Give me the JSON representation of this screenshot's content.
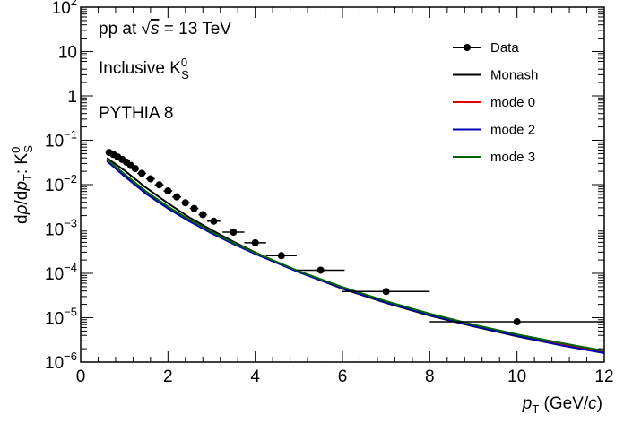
{
  "chart_data": {
    "type": "line",
    "title": "",
    "xlabel": "p_T (GeV/c)",
    "ylabel": "dρ/dp_T: K_S^0",
    "xlim": [
      0,
      12
    ],
    "ylim": [
      1e-06,
      100
    ],
    "log_y": true,
    "x_ticks": [
      "0",
      "2",
      "4",
      "6",
      "8",
      "10",
      "12"
    ],
    "y_ticks": [
      {
        "base": "10",
        "exp": "−6"
      },
      {
        "base": "10",
        "exp": "−5"
      },
      {
        "base": "10",
        "exp": "−4"
      },
      {
        "base": "10",
        "exp": "−3"
      },
      {
        "base": "10",
        "exp": "−2"
      },
      {
        "base": "10",
        "exp": "−1"
      },
      {
        "base": "1",
        "exp": ""
      },
      {
        "base": "10",
        "exp": ""
      },
      {
        "base": "10",
        "exp": "2"
      }
    ],
    "annotations": {
      "line1_prefix": "pp at ",
      "line1_sqrt": "√",
      "line1_s": "s",
      "line1_suffix": " = 13 TeV",
      "line2_prefix": "Inclusive K",
      "line2_sup": "0",
      "line2_sub": "S",
      "line3": "PYTHIA 8"
    },
    "legend_position": "top-right",
    "series": [
      {
        "name": "Data",
        "kind": "points",
        "color": "#000000",
        "points": [
          {
            "x": 0.65,
            "y": 0.053,
            "xerr": 0.05
          },
          {
            "x": 0.75,
            "y": 0.048,
            "xerr": 0.05
          },
          {
            "x": 0.85,
            "y": 0.042,
            "xerr": 0.05
          },
          {
            "x": 0.95,
            "y": 0.037,
            "xerr": 0.05
          },
          {
            "x": 1.05,
            "y": 0.032,
            "xerr": 0.05
          },
          {
            "x": 1.15,
            "y": 0.027,
            "xerr": 0.05
          },
          {
            "x": 1.25,
            "y": 0.023,
            "xerr": 0.05
          },
          {
            "x": 1.4,
            "y": 0.018,
            "xerr": 0.1
          },
          {
            "x": 1.6,
            "y": 0.0135,
            "xerr": 0.1
          },
          {
            "x": 1.8,
            "y": 0.0099,
            "xerr": 0.1
          },
          {
            "x": 2.0,
            "y": 0.0072,
            "xerr": 0.1
          },
          {
            "x": 2.2,
            "y": 0.0053,
            "xerr": 0.1
          },
          {
            "x": 2.4,
            "y": 0.0039,
            "xerr": 0.1
          },
          {
            "x": 2.6,
            "y": 0.0029,
            "xerr": 0.1
          },
          {
            "x": 2.8,
            "y": 0.0021,
            "xerr": 0.1
          },
          {
            "x": 3.05,
            "y": 0.0015,
            "xerr": 0.15
          },
          {
            "x": 3.5,
            "y": 0.00085,
            "xerr": 0.25
          },
          {
            "x": 4.0,
            "y": 0.00049,
            "xerr": 0.25
          },
          {
            "x": 4.6,
            "y": 0.00025,
            "xerr": 0.35
          },
          {
            "x": 5.5,
            "y": 0.000118,
            "xerr": 0.55
          },
          {
            "x": 7.0,
            "y": 3.9e-05,
            "xerr": 1.0
          },
          {
            "x": 10.0,
            "y": 8.1e-06,
            "xerr": 2.0
          }
        ]
      },
      {
        "name": "Monash",
        "kind": "line",
        "color": "#000000",
        "x": [
          0.6,
          1.0,
          1.5,
          2.0,
          2.5,
          3.0,
          3.5,
          4.0,
          5.0,
          6.0,
          7.0,
          8.0,
          9.0,
          10.0,
          11.0,
          12.0
        ],
        "y": [
          0.04,
          0.021,
          0.0085,
          0.0038,
          0.0018,
          0.00095,
          0.00052,
          0.000295,
          0.000107,
          4.5e-05,
          2.15e-05,
          1.12e-05,
          6.4e-06,
          3.8e-06,
          2.4e-06,
          1.6e-06
        ]
      },
      {
        "name": "mode 0",
        "kind": "line",
        "color": "#e60000",
        "x": [
          0.6,
          1.0,
          1.5,
          2.0,
          2.5,
          3.0,
          3.5,
          4.0,
          5.0,
          6.0,
          7.0,
          8.0,
          9.0,
          10.0,
          11.0,
          12.0
        ],
        "y": [
          0.036,
          0.017,
          0.0068,
          0.0031,
          0.00155,
          0.00083,
          0.00047,
          0.00028,
          0.000107,
          4.65e-05,
          2.25e-05,
          1.18e-05,
          6.7e-06,
          4e-06,
          2.5e-06,
          1.7e-06
        ]
      },
      {
        "name": "mode 2",
        "kind": "line",
        "color": "#0000b4",
        "x": [
          0.6,
          1.0,
          1.5,
          2.0,
          2.5,
          3.0,
          3.5,
          4.0,
          5.0,
          6.0,
          7.0,
          8.0,
          9.0,
          10.0,
          11.0,
          12.0
        ],
        "y": [
          0.034,
          0.0155,
          0.0062,
          0.0029,
          0.00147,
          0.0008,
          0.00046,
          0.000275,
          0.000106,
          4.6e-05,
          2.2e-05,
          1.15e-05,
          6.5e-06,
          3.9e-06,
          2.4e-06,
          1.6e-06
        ]
      },
      {
        "name": "mode 3",
        "kind": "line",
        "color": "#006400",
        "x": [
          0.6,
          1.0,
          1.5,
          2.0,
          2.5,
          3.0,
          3.5,
          4.0,
          5.0,
          6.0,
          7.0,
          8.0,
          9.0,
          10.0,
          11.0,
          12.0
        ],
        "y": [
          0.037,
          0.0175,
          0.007,
          0.0032,
          0.0016,
          0.00086,
          0.00049,
          0.00029,
          0.000112,
          4.9e-05,
          2.35e-05,
          1.23e-05,
          7e-06,
          4.2e-06,
          2.7e-06,
          1.8e-06
        ]
      }
    ]
  }
}
